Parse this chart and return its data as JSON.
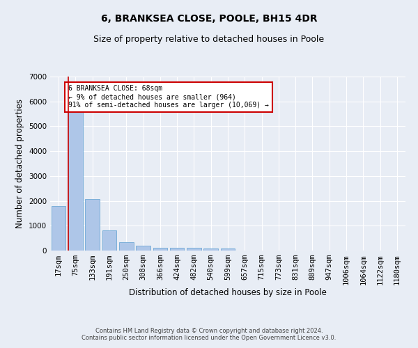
{
  "title": "6, BRANKSEA CLOSE, POOLE, BH15 4DR",
  "subtitle": "Size of property relative to detached houses in Poole",
  "xlabel": "Distribution of detached houses by size in Poole",
  "ylabel": "Number of detached properties",
  "footer_line1": "Contains HM Land Registry data © Crown copyright and database right 2024.",
  "footer_line2": "Contains public sector information licensed under the Open Government Licence v3.0.",
  "bar_labels": [
    "17sqm",
    "75sqm",
    "133sqm",
    "191sqm",
    "250sqm",
    "308sqm",
    "366sqm",
    "424sqm",
    "482sqm",
    "540sqm",
    "599sqm",
    "657sqm",
    "715sqm",
    "773sqm",
    "831sqm",
    "889sqm",
    "947sqm",
    "1006sqm",
    "1064sqm",
    "1122sqm",
    "1180sqm"
  ],
  "bar_values": [
    1780,
    5780,
    2060,
    820,
    340,
    190,
    120,
    110,
    110,
    80,
    80,
    0,
    0,
    0,
    0,
    0,
    0,
    0,
    0,
    0,
    0
  ],
  "bar_color": "#aec6e8",
  "bar_edge_color": "#6fa8d6",
  "highlight_color": "#cc0000",
  "annotation_title": "6 BRANKSEA CLOSE: 68sqm",
  "annotation_line1": "← 9% of detached houses are smaller (964)",
  "annotation_line2": "91% of semi-detached houses are larger (10,069) →",
  "annotation_box_color": "#ffffff",
  "annotation_border_color": "#cc0000",
  "ylim": [
    0,
    7000
  ],
  "yticks": [
    0,
    1000,
    2000,
    3000,
    4000,
    5000,
    6000,
    7000
  ],
  "background_color": "#e8edf5",
  "grid_color": "#ffffff",
  "title_fontsize": 10,
  "subtitle_fontsize": 9,
  "axis_fontsize": 8.5,
  "tick_fontsize": 7.5,
  "footer_fontsize": 6
}
